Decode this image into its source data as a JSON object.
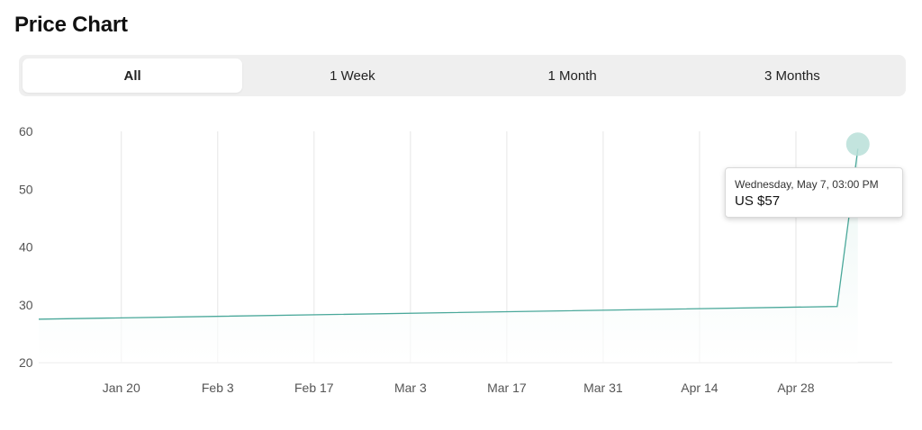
{
  "header": {
    "title": "Price Chart"
  },
  "tabs": [
    {
      "label": "All",
      "active": true
    },
    {
      "label": "1 Week",
      "active": false
    },
    {
      "label": "1 Month",
      "active": false
    },
    {
      "label": "3 Months",
      "active": false
    }
  ],
  "tooltip": {
    "date": "Wednesday, May 7, 03:00 PM",
    "value": "US $57"
  },
  "colors": {
    "line": "#4aa89a",
    "fill": "#e6f4f1",
    "gridline": "#e6e6e6",
    "marker": "#b9dfd8"
  },
  "chart_data": {
    "type": "area",
    "xlabel": "",
    "ylabel": "",
    "ylim": [
      20,
      60
    ],
    "yticks": [
      20,
      30,
      40,
      50,
      60
    ],
    "xlim": [
      "2025-01-08",
      "2025-05-12"
    ],
    "xticks": [
      {
        "date": "2025-01-20",
        "label": "Jan 20"
      },
      {
        "date": "2025-02-03",
        "label": "Feb 3"
      },
      {
        "date": "2025-02-17",
        "label": "Feb 17"
      },
      {
        "date": "2025-03-03",
        "label": "Mar 3"
      },
      {
        "date": "2025-03-17",
        "label": "Mar 17"
      },
      {
        "date": "2025-03-31",
        "label": "Mar 31"
      },
      {
        "date": "2025-04-14",
        "label": "Apr 14"
      },
      {
        "date": "2025-04-28",
        "label": "Apr 28"
      }
    ],
    "grid": "vertical",
    "series": [
      {
        "points": [
          {
            "x": "2025-01-08",
            "y": 27.5
          },
          {
            "x": "2025-05-04",
            "y": 29.7
          },
          {
            "x": "2025-05-07",
            "y": 57
          }
        ]
      }
    ],
    "highlight": {
      "x": "2025-05-07",
      "y": 57
    }
  }
}
